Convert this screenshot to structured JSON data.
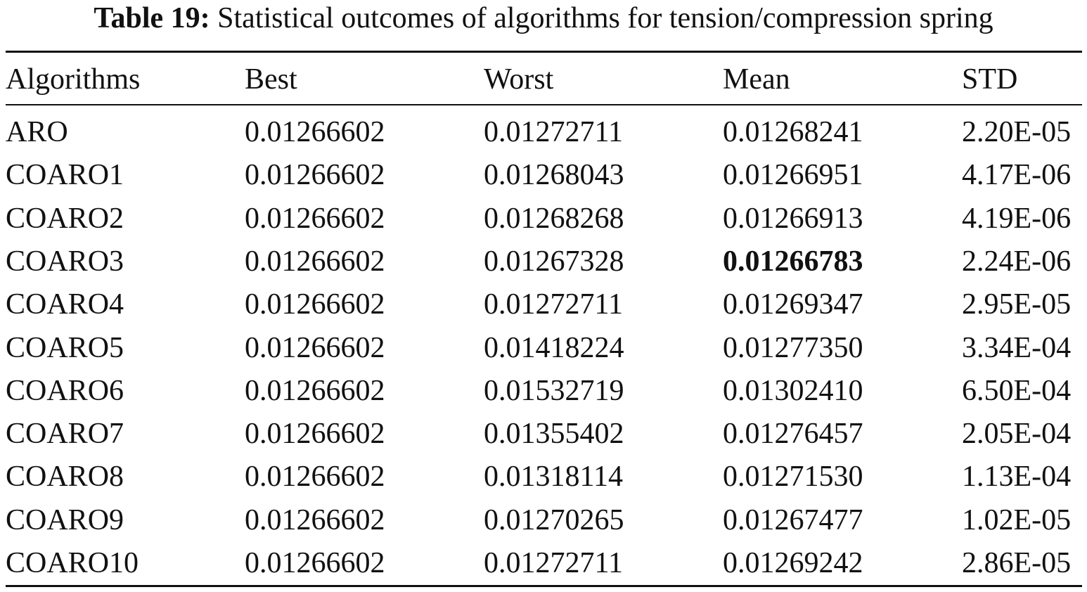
{
  "caption": {
    "label": "Table 19:",
    "text": "Statistical outcomes of algorithms for tension/compression spring"
  },
  "table": {
    "headers": [
      "Algorithms",
      "Best",
      "Worst",
      "Mean",
      "STD"
    ],
    "rows": [
      [
        "ARO",
        "0.01266602",
        "0.01272711",
        "0.01268241",
        "2.20E-05"
      ],
      [
        "COARO1",
        "0.01266602",
        "0.01268043",
        "0.01266951",
        "4.17E-06"
      ],
      [
        "COARO2",
        "0.01266602",
        "0.01268268",
        "0.01266913",
        "4.19E-06"
      ],
      [
        "COARO3",
        "0.01266602",
        "0.01267328",
        "0.01266783",
        "2.24E-06"
      ],
      [
        "COARO4",
        "0.01266602",
        "0.01272711",
        "0.01269347",
        "2.95E-05"
      ],
      [
        "COARO5",
        "0.01266602",
        "0.01418224",
        "0.01277350",
        "3.34E-04"
      ],
      [
        "COARO6",
        "0.01266602",
        "0.01532719",
        "0.01302410",
        "6.50E-04"
      ],
      [
        "COARO7",
        "0.01266602",
        "0.01355402",
        "0.01276457",
        "2.05E-04"
      ],
      [
        "COARO8",
        "0.01266602",
        "0.01318114",
        "0.01271530",
        "1.13E-04"
      ],
      [
        "COARO9",
        "0.01266602",
        "0.01270265",
        "0.01267477",
        "1.02E-05"
      ],
      [
        "COARO10",
        "0.01266602",
        "0.01272711",
        "0.01269242",
        "2.86E-05"
      ]
    ],
    "bold_cell": {
      "row": 3,
      "col": 3
    }
  }
}
